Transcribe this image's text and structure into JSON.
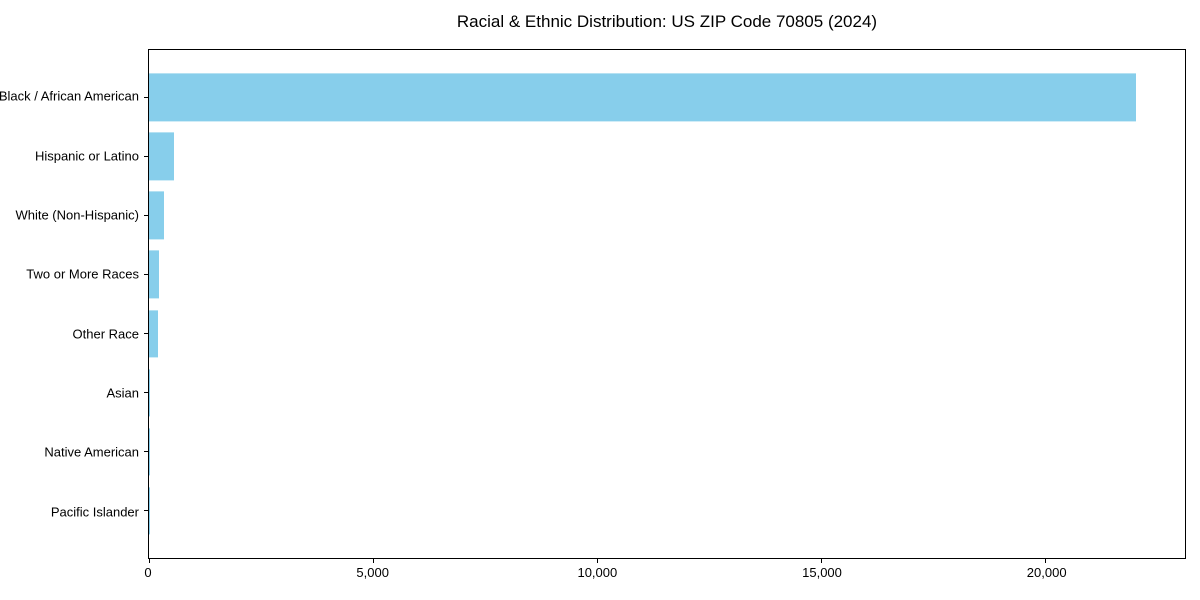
{
  "chart_data": {
    "type": "bar",
    "orientation": "horizontal",
    "title": "Racial & Ethnic Distribution: US ZIP Code 70805 (2024)",
    "categories": [
      "Black / African American",
      "Hispanic or Latino",
      "White (Non-Hispanic)",
      "Two or More Races",
      "Other Race",
      "Asian",
      "Native American",
      "Pacific Islander"
    ],
    "values": [
      22000,
      550,
      330,
      225,
      200,
      25,
      10,
      5
    ],
    "xlabel": "",
    "ylabel": "",
    "xlim": [
      0,
      23100
    ],
    "x_ticks": [
      {
        "value": 0,
        "label": "0"
      },
      {
        "value": 5000,
        "label": "5,000"
      },
      {
        "value": 10000,
        "label": "10,000"
      },
      {
        "value": 15000,
        "label": "15,000"
      },
      {
        "value": 20000,
        "label": "20,000"
      }
    ],
    "bar_color": "#87CEEB",
    "axis_color": "#000000",
    "background_color": "#FFFFFF",
    "grid": false,
    "legend": null
  }
}
